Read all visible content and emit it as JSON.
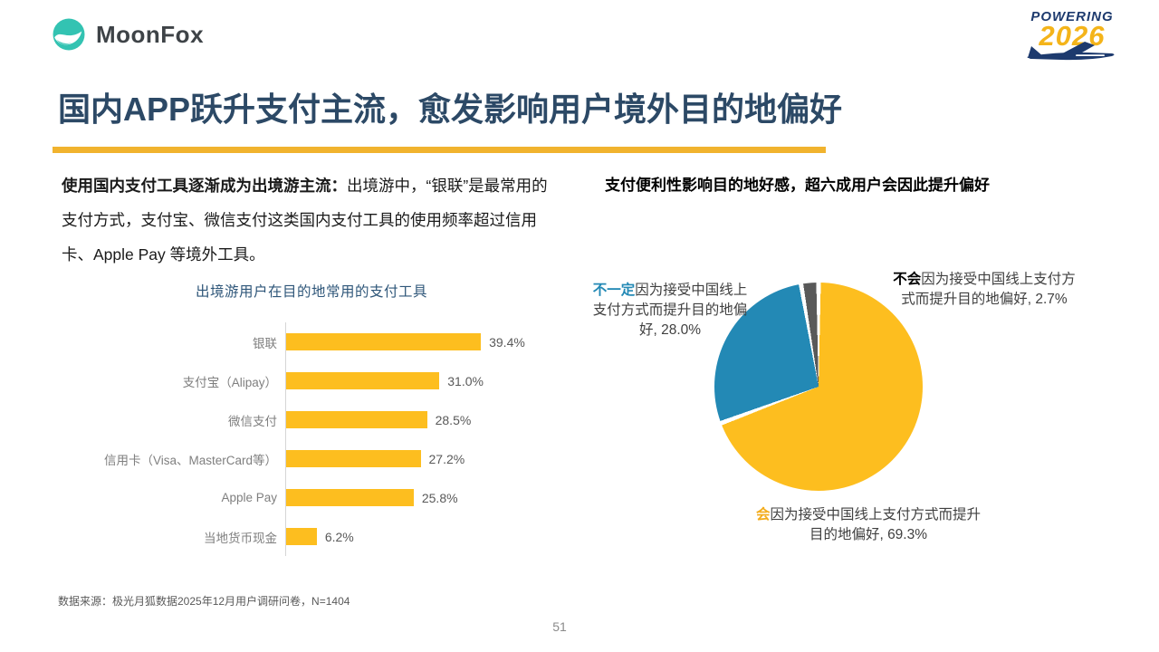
{
  "header": {
    "brand_name": "MoonFox",
    "event_logo_line1": "POWERING",
    "event_logo_line2": "2026"
  },
  "title": "国内APP跃升支付主流，愈发影响用户境外目的地偏好",
  "left_text": {
    "bold": "使用国内支付工具逐渐成为出境游主流：",
    "rest": "出境游中，“银联”是最常用的支付方式，支付宝、微信支付这类国内支付工具的使用频率超过信用卡、Apple Pay 等境外工具。"
  },
  "right_heading": "支付便利性影响目的地好感，超六成用户会因此提升偏好",
  "chart_data": [
    {
      "type": "bar",
      "orientation": "horizontal",
      "title": "出境游用户在目的地常用的支付工具",
      "categories": [
        "银联",
        "支付宝（Alipay）",
        "微信支付",
        "信用卡（Visa、MasterCard等）",
        "Apple Pay",
        "当地货币现金"
      ],
      "values": [
        39.4,
        31.0,
        28.5,
        27.2,
        25.8,
        6.2
      ],
      "value_labels": [
        "39.4%",
        "31.0%",
        "28.5%",
        "27.2%",
        "25.8%",
        "6.2%"
      ],
      "bar_color": "#fdbe1f",
      "xlim": [
        0,
        42
      ],
      "grid": false
    },
    {
      "type": "pie",
      "start_angle_deg": 0,
      "direction": "clockwise",
      "legend_position": "outside-callout-labels",
      "slices": [
        {
          "label_bold": "会",
          "label_rest": "因为接受中国线上支付方式而提升目的地偏好, 69.3%",
          "value": 69.3,
          "color": "#fdbe1f"
        },
        {
          "label_bold": "不一定",
          "label_rest": "因为接受中国线上支付方式而提升目的地偏好, 28.0%",
          "value": 28.0,
          "color": "#2389b5"
        },
        {
          "label_bold": "不会",
          "label_rest": "因为接受中国线上支付方式而提升目的地偏好, 2.7%",
          "value": 2.7,
          "color": "#595959"
        }
      ]
    }
  ],
  "footer": {
    "source": "数据来源：极光月狐数据2025年12月用户调研问卷，N=1404",
    "page_number": "51"
  },
  "colors": {
    "accent_yellow": "#fdbe1f",
    "accent_blue": "#2389b5",
    "accent_gray": "#595959",
    "title_navy": "#2c4966",
    "brand_teal": "#33c3b2",
    "event_navy": "#1d3a6e"
  }
}
